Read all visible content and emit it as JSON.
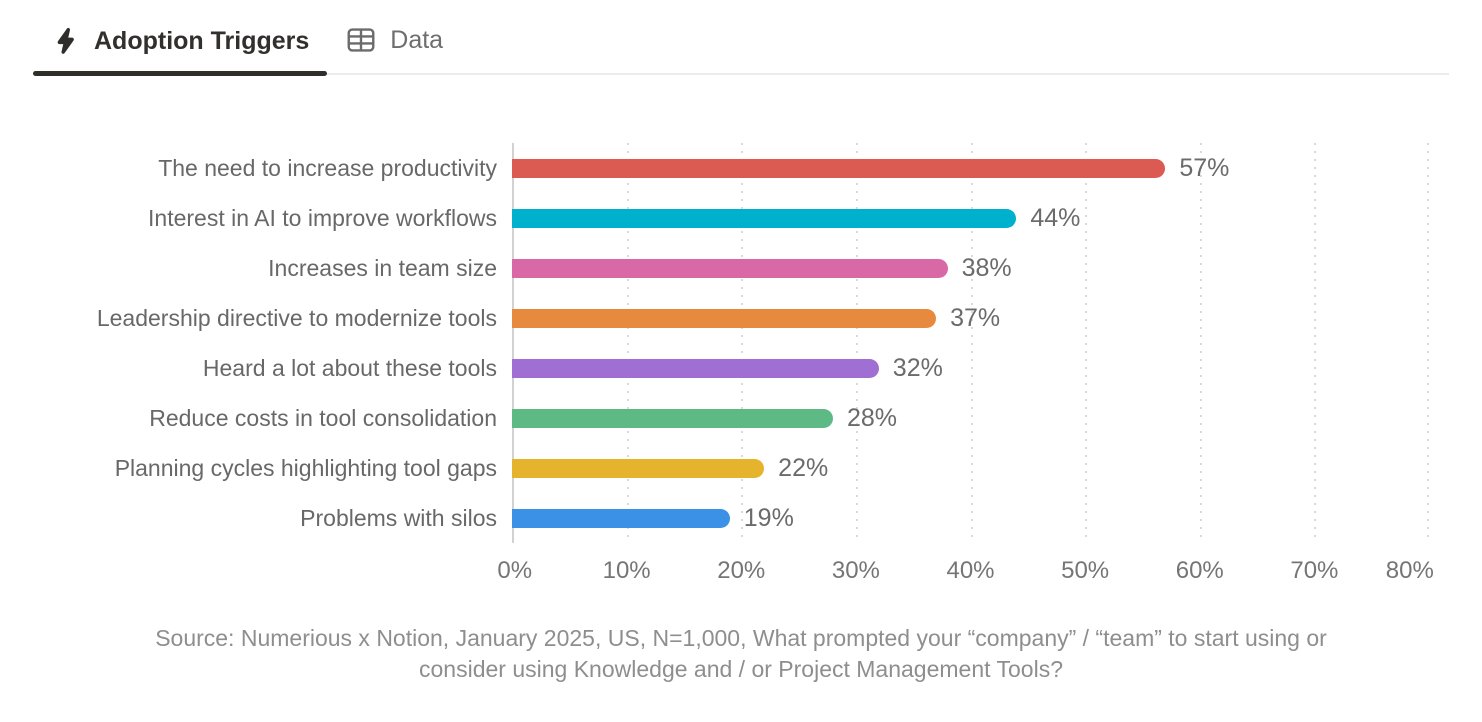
{
  "header": {
    "tabs": [
      {
        "label": "Adoption Triggers",
        "icon": "lightning-icon",
        "active": true
      },
      {
        "label": "Data",
        "icon": "table-icon",
        "active": false
      }
    ]
  },
  "chart_data": {
    "type": "bar",
    "orientation": "horizontal",
    "title": "",
    "categories": [
      "The need to increase productivity",
      "Interest in AI to improve workflows",
      "Increases in team size",
      "Leadership directive to modernize tools",
      "Heard a lot about these tools",
      "Reduce costs in tool consolidation",
      "Planning cycles highlighting tool gaps",
      "Problems with silos"
    ],
    "values": [
      57,
      44,
      38,
      37,
      32,
      28,
      22,
      19
    ],
    "value_labels": [
      "57%",
      "44%",
      "38%",
      "37%",
      "32%",
      "28%",
      "22%",
      "19%"
    ],
    "bar_colors": [
      "#db5a52",
      "#00b1cd",
      "#d968a6",
      "#e78a3e",
      "#a06fd3",
      "#5eba84",
      "#e6b32d",
      "#3a91e5"
    ],
    "xlim": [
      0,
      80
    ],
    "x_ticks": [
      "0%",
      "10%",
      "20%",
      "30%",
      "40%",
      "50%",
      "60%",
      "70%",
      "80%"
    ],
    "grid": "vertical-dotted",
    "legend": "none"
  },
  "source": {
    "line1": "Source: Numerious x Notion, January 2025, US, N=1,000, What prompted your “company” / “team” to start using or",
    "line2": "consider using Knowledge and / or Project Management Tools?"
  },
  "colors": {
    "active_tab_text": "#32302c",
    "active_tab_underline": "#2f2e2b",
    "inactive_tab_text": "#6e6e6e",
    "axis_line": "#d2d2d2",
    "gridline": "#d9d9d9",
    "label_text": "#686868",
    "value_text": "#6b6b6b",
    "tick_text": "#757575",
    "source_text": "#8e8e8e"
  }
}
